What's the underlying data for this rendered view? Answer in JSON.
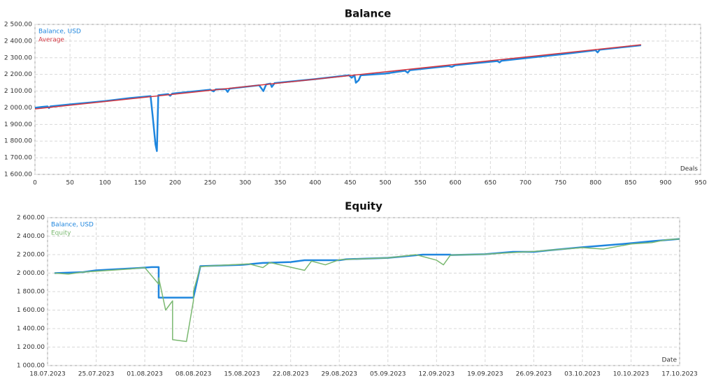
{
  "chart_data": [
    {
      "type": "line",
      "title": "Balance",
      "xlabel": "Deals",
      "xlim": [
        0,
        950
      ],
      "xticks": [
        0,
        50,
        100,
        150,
        200,
        250,
        300,
        350,
        400,
        450,
        500,
        550,
        600,
        650,
        700,
        750,
        800,
        850,
        900,
        950
      ],
      "ylim": [
        1600,
        2500
      ],
      "yticks": [
        {
          "value": 1600,
          "label": "1 600.00"
        },
        {
          "value": 1700,
          "label": "1 700.00"
        },
        {
          "value": 1800,
          "label": "1 800.00"
        },
        {
          "value": 1900,
          "label": "1 900.00"
        },
        {
          "value": 2000,
          "label": "2 000.00"
        },
        {
          "value": 2100,
          "label": "2 100.00"
        },
        {
          "value": 2200,
          "label": "2 200.00"
        },
        {
          "value": 2300,
          "label": "2 300.00"
        },
        {
          "value": 2400,
          "label": "2 400.00"
        },
        {
          "value": 2500,
          "label": "2 500.00"
        }
      ],
      "grid": true,
      "series": [
        {
          "name": "Balance, USD",
          "color": "#1f86de",
          "width": 2.5,
          "x": [
            0,
            10,
            18,
            20,
            22,
            50,
            100,
            135,
            160,
            165,
            168,
            172,
            174,
            176,
            190,
            193,
            196,
            250,
            255,
            258,
            272,
            275,
            278,
            320,
            326,
            330,
            336,
            338,
            342,
            400,
            448,
            452,
            456,
            458,
            462,
            465,
            500,
            528,
            532,
            535,
            590,
            595,
            600,
            660,
            663,
            666,
            750,
            800,
            803,
            806,
            865
          ],
          "values": [
            2000,
            2005,
            2008,
            1998,
            2008,
            2020,
            2040,
            2058,
            2068,
            2070,
            1950,
            1780,
            1740,
            2075,
            2082,
            2072,
            2085,
            2108,
            2098,
            2110,
            2112,
            2095,
            2115,
            2135,
            2100,
            2140,
            2145,
            2125,
            2148,
            2172,
            2195,
            2180,
            2195,
            2150,
            2165,
            2195,
            2205,
            2222,
            2210,
            2225,
            2250,
            2245,
            2255,
            2280,
            2272,
            2282,
            2320,
            2345,
            2332,
            2348,
            2375
          ]
        },
        {
          "name": "Average",
          "color": "#d2343f",
          "width": 1.5,
          "x": [
            0,
            865
          ],
          "values": [
            1993,
            2378
          ]
        }
      ]
    },
    {
      "type": "line",
      "title": "Equity",
      "xlabel": "Date",
      "xlim": [
        "18.07.2023",
        "17.10.2023"
      ],
      "xticks": [
        "18.07.2023",
        "25.07.2023",
        "01.08.2023",
        "08.08.2023",
        "15.08.2023",
        "22.08.2023",
        "29.08.2023",
        "05.09.2023",
        "12.09.2023",
        "19.09.2023",
        "26.09.2023",
        "03.10.2023",
        "10.10.2023",
        "17.10.2023"
      ],
      "ylim": [
        1000,
        2600
      ],
      "yticks": [
        {
          "value": 1000,
          "label": "1 000.00"
        },
        {
          "value": 1200,
          "label": "1 200.00"
        },
        {
          "value": 1400,
          "label": "1 400.00"
        },
        {
          "value": 1600,
          "label": "1 600.00"
        },
        {
          "value": 1800,
          "label": "1 800.00"
        },
        {
          "value": 2000,
          "label": "2 000.00"
        },
        {
          "value": 2200,
          "label": "2 200.00"
        },
        {
          "value": 2400,
          "label": "2 400.00"
        },
        {
          "value": 2600,
          "label": "2 600.00"
        }
      ],
      "grid": true,
      "series": [
        {
          "name": "Balance, USD",
          "color": "#1f86de",
          "width": 2.5,
          "x": [
            "19.07.2023",
            "23.07.2023",
            "25.07.2023",
            "31.07.2023",
            "02.08.2023",
            "03.08.2023",
            "03.08.2023",
            "08.08.2023",
            "09.08.2023",
            "15.08.2023",
            "18.08.2023",
            "20.08.2023",
            "22.08.2023",
            "24.08.2023",
            "29.08.2023",
            "30.08.2023",
            "05.09.2023",
            "10.09.2023",
            "14.09.2023",
            "14.09.2023",
            "19.09.2023",
            "23.09.2023",
            "26.09.2023",
            "28.09.2023",
            "03.10.2023",
            "08.10.2023",
            "13.10.2023",
            "17.10.2023"
          ],
          "values": [
            2000,
            2010,
            2030,
            2055,
            2065,
            2065,
            1735,
            1735,
            2075,
            2090,
            2110,
            2115,
            2120,
            2140,
            2140,
            2150,
            2165,
            2200,
            2200,
            2195,
            2205,
            2230,
            2230,
            2245,
            2280,
            2310,
            2345,
            2370
          ]
        },
        {
          "name": "Equity",
          "color": "#7ab870",
          "width": 1.5,
          "x": [
            "19.07.2023",
            "21.07.2023",
            "23.07.2023",
            "30.07.2023",
            "01.08.2023",
            "03.08.2023",
            "03.08.2023",
            "04.08.2023",
            "05.08.2023",
            "05.08.2023",
            "07.08.2023",
            "08.08.2023",
            "08.08.2023",
            "09.08.2023",
            "12.08.2023",
            "16.08.2023",
            "18.08.2023",
            "19.08.2023",
            "24.08.2023",
            "25.08.2023",
            "27.08.2023",
            "29.08.2023",
            "05.09.2023",
            "09.09.2023",
            "12.09.2023",
            "13.09.2023",
            "14.09.2023",
            "19.09.2023",
            "26.09.2023",
            "03.10.2023",
            "06.10.2023",
            "10.10.2023",
            "13.10.2023",
            "15.10.2023",
            "17.10.2023"
          ],
          "values": [
            2000,
            1990,
            2010,
            2045,
            2060,
            1880,
            1950,
            1600,
            1700,
            1280,
            1260,
            1700,
            1800,
            2070,
            2085,
            2100,
            2060,
            2115,
            2030,
            2130,
            2090,
            2145,
            2165,
            2200,
            2140,
            2090,
            2195,
            2205,
            2235,
            2275,
            2260,
            2315,
            2330,
            2360,
            2370
          ]
        }
      ]
    }
  ]
}
